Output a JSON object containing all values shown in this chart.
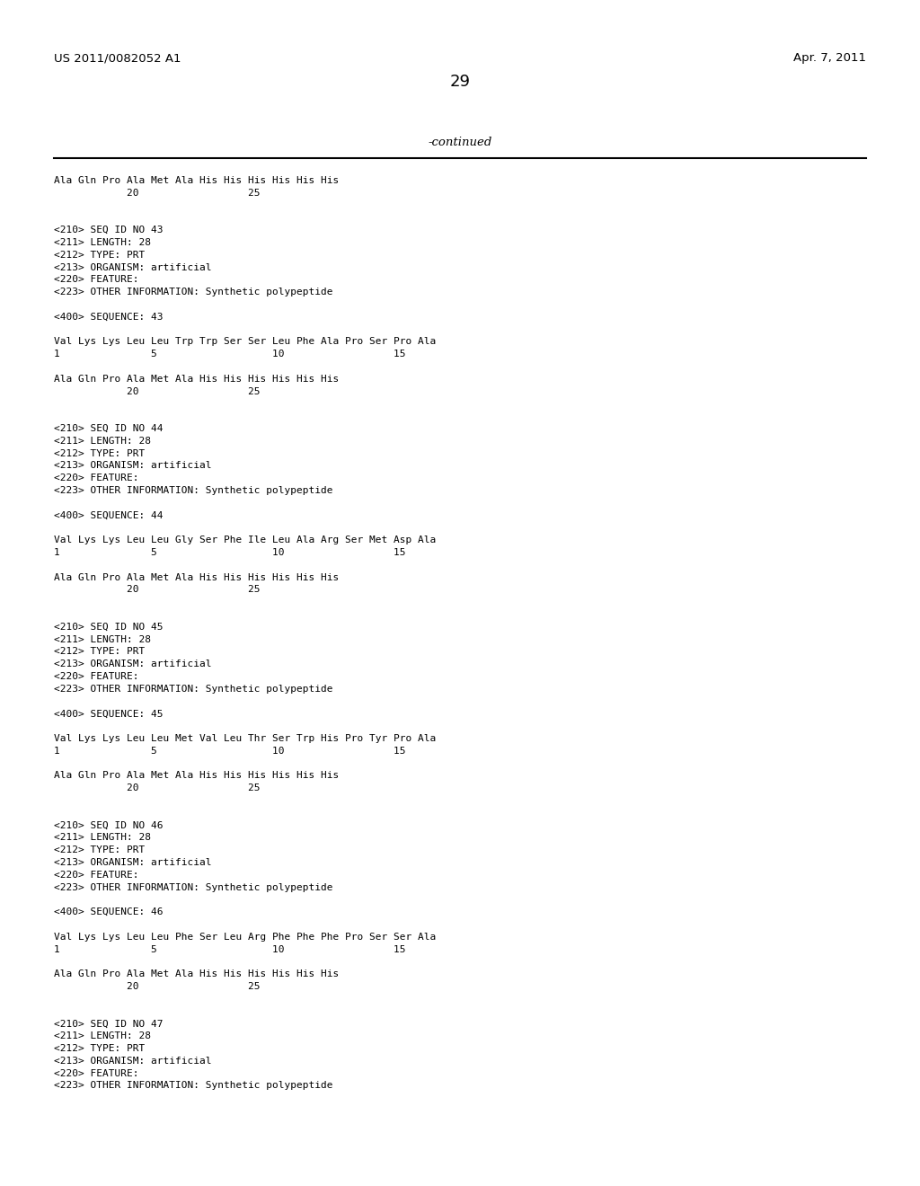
{
  "header_left": "US 2011/0082052 A1",
  "header_right": "Apr. 7, 2011",
  "page_number": "29",
  "continued_label": "-continued",
  "background_color": "#ffffff",
  "text_color": "#000000",
  "font_size": 8.0,
  "header_font_size": 9.5,
  "page_num_font_size": 13,
  "lines": [
    "Ala Gln Pro Ala Met Ala His His His His His His",
    "            20                  25",
    "",
    "",
    "<210> SEQ ID NO 43",
    "<211> LENGTH: 28",
    "<212> TYPE: PRT",
    "<213> ORGANISM: artificial",
    "<220> FEATURE:",
    "<223> OTHER INFORMATION: Synthetic polypeptide",
    "",
    "<400> SEQUENCE: 43",
    "",
    "Val Lys Lys Leu Leu Trp Trp Ser Ser Leu Phe Ala Pro Ser Pro Ala",
    "1               5                   10                  15",
    "",
    "Ala Gln Pro Ala Met Ala His His His His His His",
    "            20                  25",
    "",
    "",
    "<210> SEQ ID NO 44",
    "<211> LENGTH: 28",
    "<212> TYPE: PRT",
    "<213> ORGANISM: artificial",
    "<220> FEATURE:",
    "<223> OTHER INFORMATION: Synthetic polypeptide",
    "",
    "<400> SEQUENCE: 44",
    "",
    "Val Lys Lys Leu Leu Gly Ser Phe Ile Leu Ala Arg Ser Met Asp Ala",
    "1               5                   10                  15",
    "",
    "Ala Gln Pro Ala Met Ala His His His His His His",
    "            20                  25",
    "",
    "",
    "<210> SEQ ID NO 45",
    "<211> LENGTH: 28",
    "<212> TYPE: PRT",
    "<213> ORGANISM: artificial",
    "<220> FEATURE:",
    "<223> OTHER INFORMATION: Synthetic polypeptide",
    "",
    "<400> SEQUENCE: 45",
    "",
    "Val Lys Lys Leu Leu Met Val Leu Thr Ser Trp His Pro Tyr Pro Ala",
    "1               5                   10                  15",
    "",
    "Ala Gln Pro Ala Met Ala His His His His His His",
    "            20                  25",
    "",
    "",
    "<210> SEQ ID NO 46",
    "<211> LENGTH: 28",
    "<212> TYPE: PRT",
    "<213> ORGANISM: artificial",
    "<220> FEATURE:",
    "<223> OTHER INFORMATION: Synthetic polypeptide",
    "",
    "<400> SEQUENCE: 46",
    "",
    "Val Lys Lys Leu Leu Phe Ser Leu Arg Phe Phe Phe Pro Ser Ser Ala",
    "1               5                   10                  15",
    "",
    "Ala Gln Pro Ala Met Ala His His His His His His",
    "            20                  25",
    "",
    "",
    "<210> SEQ ID NO 47",
    "<211> LENGTH: 28",
    "<212> TYPE: PRT",
    "<213> ORGANISM: artificial",
    "<220> FEATURE:",
    "<223> OTHER INFORMATION: Synthetic polypeptide"
  ]
}
